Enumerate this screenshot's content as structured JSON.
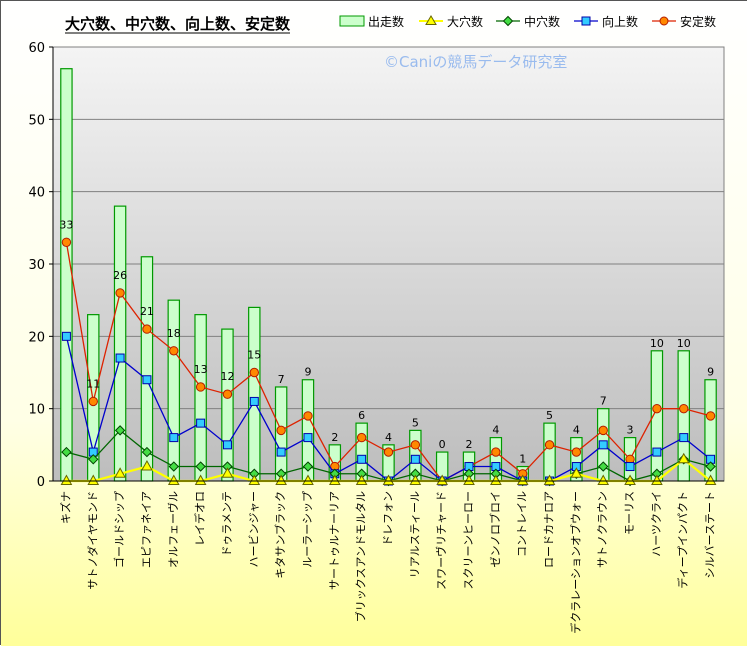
{
  "chart_data": {
    "type": "bar+line",
    "title": "大穴数、中穴数、向上数、安定数",
    "watermark": "©Caniの競馬データ研究室",
    "categories": [
      "キズナ",
      "サトノダイヤモンド",
      "ゴールドシップ",
      "エピファネイア",
      "オルフェーヴル",
      "レイデオロ",
      "ドゥラメンテ",
      "ハービンジャー",
      "キタサンブラック",
      "ルーラーシップ",
      "サートゥルナーリア",
      "ブリックスアンドモルタル",
      "ドレフォン",
      "リアルスティール",
      "スワーヴリチャード",
      "スクリーンヒーロー",
      "ゼンノロブロイ",
      "コントレイル",
      "ロードカナロア",
      "デクラレーションオブウォー",
      "サトノクラウン",
      "モーリス",
      "ハーツクライ",
      "ディープインパクト",
      "シルバーステート"
    ],
    "ylim": [
      0,
      60
    ],
    "yticks": [
      0,
      10,
      20,
      30,
      40,
      50,
      60
    ],
    "grid": true,
    "legend_position": "top-right",
    "series": [
      {
        "name": "出走数",
        "type": "bar",
        "color": "#ccffcc",
        "edge": "#009900",
        "values": [
          57,
          23,
          38,
          31,
          25,
          23,
          21,
          24,
          13,
          14,
          5,
          8,
          5,
          7,
          4,
          4,
          6,
          2,
          8,
          6,
          10,
          6,
          18,
          18,
          14
        ]
      },
      {
        "name": "大穴数",
        "type": "line",
        "color": "#ffff00",
        "marker": "triangle",
        "values": [
          0,
          0,
          1,
          2,
          0,
          0,
          1,
          0,
          0,
          0,
          0,
          0,
          0,
          0,
          0,
          0,
          0,
          0,
          0,
          1,
          0,
          0,
          0,
          3,
          0
        ]
      },
      {
        "name": "中穴数",
        "type": "line",
        "color": "#006600",
        "marker": "diamond",
        "values": [
          4,
          3,
          7,
          4,
          2,
          2,
          2,
          1,
          1,
          2,
          1,
          1,
          0,
          1,
          0,
          1,
          1,
          0,
          0,
          1,
          2,
          0,
          1,
          3,
          2
        ]
      },
      {
        "name": "向上数",
        "type": "line",
        "color": "#0000cc",
        "marker": "square",
        "values": [
          20,
          4,
          17,
          14,
          6,
          8,
          5,
          11,
          4,
          6,
          1,
          3,
          0,
          3,
          0,
          2,
          2,
          0,
          0,
          2,
          5,
          2,
          4,
          6,
          3
        ]
      },
      {
        "name": "安定数",
        "type": "line",
        "color": "#dd2200",
        "marker": "circle",
        "values": [
          33,
          11,
          26,
          21,
          18,
          13,
          12,
          15,
          7,
          9,
          2,
          6,
          4,
          5,
          0,
          2,
          4,
          1,
          5,
          4,
          7,
          3,
          10,
          10,
          9
        ]
      }
    ],
    "data_labels": [
      "33",
      "11",
      "26",
      "21",
      "18",
      "13",
      "12",
      "15",
      "7",
      "9",
      "2",
      "6",
      "4",
      "5",
      "0",
      "2",
      "4",
      "1",
      "5",
      "4",
      "7",
      "3",
      "10",
      "10",
      "9"
    ]
  }
}
